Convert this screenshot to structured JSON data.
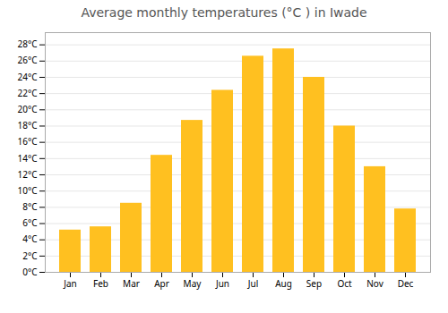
{
  "chart_data": {
    "type": "bar",
    "title": "Average monthly temperatures (°C ) in Iwade",
    "categories": [
      "Jan",
      "Feb",
      "Mar",
      "Apr",
      "May",
      "Jun",
      "Jul",
      "Aug",
      "Sep",
      "Oct",
      "Nov",
      "Dec"
    ],
    "values": [
      5.2,
      5.6,
      8.5,
      14.4,
      18.7,
      22.4,
      26.6,
      27.5,
      24.0,
      18.0,
      13.0,
      7.8
    ],
    "color": "#FFC020",
    "ylim": [
      0,
      29.5
    ],
    "yticks": [
      {
        "value": 0,
        "label": "0°C"
      },
      {
        "value": 2,
        "label": "2°C"
      },
      {
        "value": 4,
        "label": "4°C"
      },
      {
        "value": 6,
        "label": "6°C"
      },
      {
        "value": 8,
        "label": "8°C"
      },
      {
        "value": 10,
        "label": "10°C"
      },
      {
        "value": 12,
        "label": "12°C"
      },
      {
        "value": 14,
        "label": "14°C"
      },
      {
        "value": 16,
        "label": "16°C"
      },
      {
        "value": 18,
        "label": "18°C"
      },
      {
        "value": 20,
        "label": "20°C"
      },
      {
        "value": 22,
        "label": "22°C"
      },
      {
        "value": 24,
        "label": "24°C"
      },
      {
        "value": 26,
        "label": "26°C"
      },
      {
        "value": 28,
        "label": "28°C"
      }
    ],
    "grid": true
  }
}
